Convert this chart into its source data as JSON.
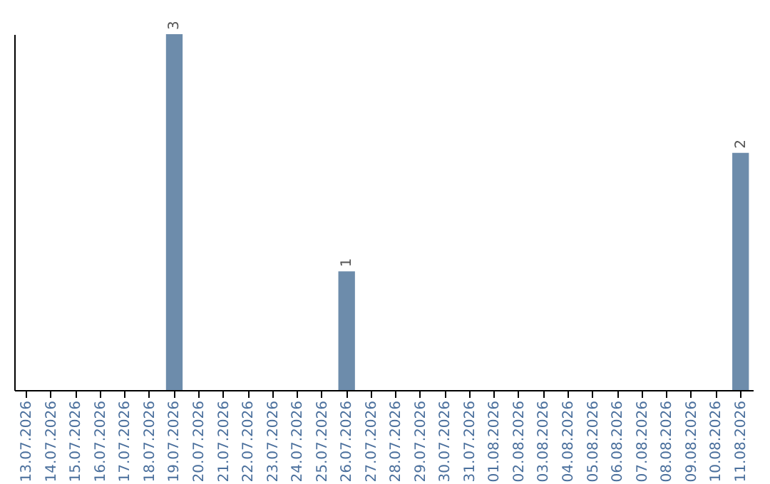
{
  "chart_data": {
    "type": "bar",
    "categories": [
      "13.07.2026",
      "14.07.2026",
      "15.07.2026",
      "16.07.2026",
      "17.07.2026",
      "18.07.2026",
      "19.07.2026",
      "20.07.2026",
      "21.07.2026",
      "22.07.2026",
      "23.07.2026",
      "24.07.2026",
      "25.07.2026",
      "26.07.2026",
      "27.07.2026",
      "28.07.2026",
      "29.07.2026",
      "30.07.2026",
      "31.07.2026",
      "01.08.2026",
      "02.08.2026",
      "03.08.2026",
      "04.08.2026",
      "05.08.2026",
      "06.08.2026",
      "07.08.2026",
      "08.08.2026",
      "09.08.2026",
      "10.08.2026",
      "11.08.2026"
    ],
    "values": [
      null,
      null,
      null,
      null,
      null,
      null,
      3,
      null,
      null,
      null,
      null,
      null,
      null,
      1,
      null,
      null,
      null,
      null,
      null,
      null,
      null,
      null,
      null,
      null,
      null,
      null,
      null,
      null,
      null,
      2
    ],
    "color": "#6d8cab",
    "data_labels": true
  }
}
